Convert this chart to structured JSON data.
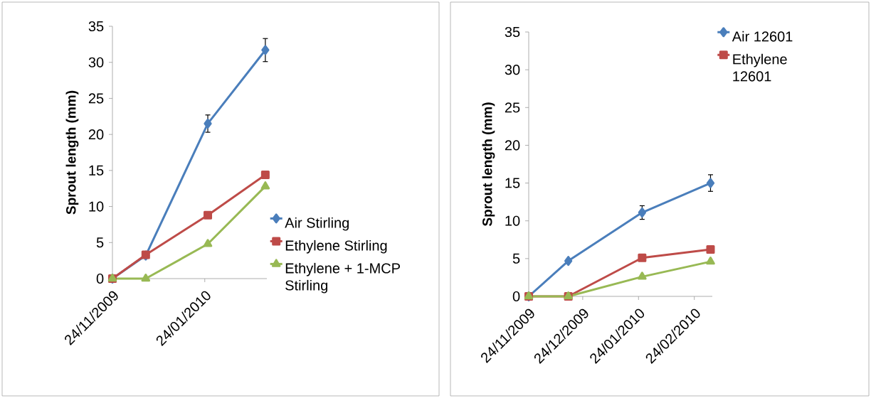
{
  "chart_data": [
    {
      "type": "line",
      "ylabel": "Sprout length (mm)",
      "x": [
        "2009-11-24",
        "2009-12-16",
        "2010-01-26",
        "2010-03-05"
      ],
      "xlim": [
        "2009-11-24",
        "2010-03-06"
      ],
      "xticks": [
        {
          "value": "2009-11-24",
          "label": "24/11/2009"
        },
        {
          "value": "2010-01-24",
          "label": "24/01/2010"
        }
      ],
      "ylim": [
        0,
        35
      ],
      "yticks": [
        0,
        5,
        10,
        15,
        20,
        25,
        30,
        35
      ],
      "legend": "right",
      "line_style": "solid",
      "grid": false,
      "series": [
        {
          "name": "Air Stirling",
          "color": "#4a7ebb",
          "marker": "diamond",
          "values": [
            0,
            3.2,
            21.5,
            31.7
          ],
          "errors": [
            null,
            null,
            1.2,
            1.6
          ]
        },
        {
          "name": "Ethylene Stirling",
          "color": "#be4b48",
          "marker": "square",
          "values": [
            0,
            3.3,
            8.8,
            14.4
          ]
        },
        {
          "name": "Ethylene + 1-MCP Stirling",
          "color": "#98b954",
          "marker": "triangle",
          "values": [
            0,
            0,
            4.8,
            12.8
          ]
        }
      ]
    },
    {
      "type": "line",
      "ylabel": "Sprout length (mm)",
      "x": [
        "2009-11-24",
        "2009-12-16",
        "2010-01-26",
        "2010-03-05"
      ],
      "xlim": [
        "2009-11-24",
        "2010-03-06"
      ],
      "xticks": [
        {
          "value": "2009-11-24",
          "label": "24/11/2009"
        },
        {
          "value": "2009-12-24",
          "label": "24/12/2009"
        },
        {
          "value": "2010-01-24",
          "label": "24/01/2010"
        },
        {
          "value": "2010-02-24",
          "label": "24/02/2010"
        }
      ],
      "ylim": [
        0,
        35
      ],
      "yticks": [
        0,
        5,
        10,
        15,
        20,
        25,
        30,
        35
      ],
      "legend": "right",
      "line_style": "solid",
      "grid": false,
      "series": [
        {
          "name": "Air 12601",
          "color": "#4a7ebb",
          "marker": "diamond",
          "values": [
            0,
            4.7,
            11.1,
            15.0
          ],
          "errors": [
            null,
            null,
            0.9,
            1.1
          ]
        },
        {
          "name": "Ethylene 12601",
          "color": "#be4b48",
          "marker": "square",
          "values": [
            0,
            0,
            5.1,
            6.2
          ]
        },
        {
          "color": "#98b954",
          "marker": "triangle",
          "values": [
            0,
            0,
            2.6,
            4.6
          ]
        }
      ]
    }
  ]
}
